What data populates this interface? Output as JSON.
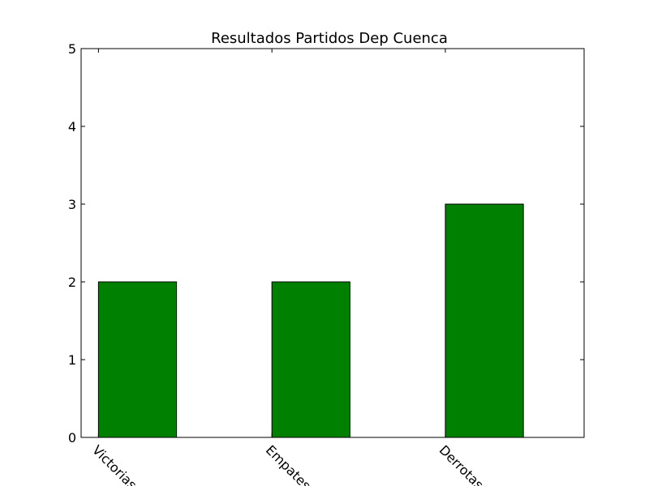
{
  "chart_data": {
    "type": "bar",
    "title": "Resultados Partidos Dep Cuenca",
    "xlabel": "",
    "ylabel": "",
    "categories": [
      "Victorias",
      "Empates",
      "Derrotas"
    ],
    "values": [
      2,
      2,
      3
    ],
    "ylim": [
      0,
      5
    ],
    "yticks": [
      0,
      1,
      2,
      3,
      4,
      5
    ],
    "bar_color": "#008000",
    "edge_color": "#000000",
    "grid": false
  }
}
